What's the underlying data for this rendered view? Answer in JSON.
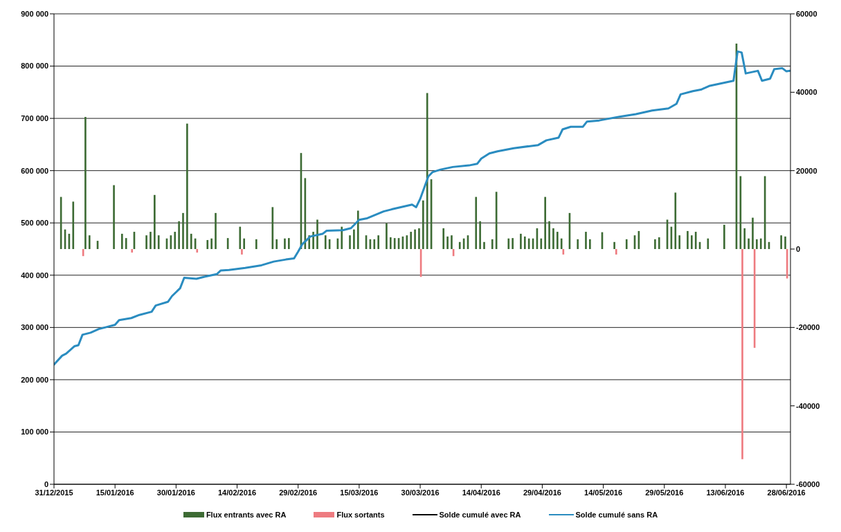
{
  "chart_data": {
    "type": "bar",
    "grid": "y",
    "legend": "bottom",
    "xlim": [
      "2015-12-31",
      "2016-06-29"
    ],
    "xticks": [
      {
        "value": "2015-12-31",
        "label": "31/12/2015"
      },
      {
        "value": "2016-01-15",
        "label": "15/01/2016"
      },
      {
        "value": "2016-01-30",
        "label": "30/01/2016"
      },
      {
        "value": "2016-02-14",
        "label": "14/02/2016"
      },
      {
        "value": "2016-02-29",
        "label": "29/02/2016"
      },
      {
        "value": "2016-03-15",
        "label": "15/03/2016"
      },
      {
        "value": "2016-03-30",
        "label": "30/03/2016"
      },
      {
        "value": "2016-04-14",
        "label": "14/04/2016"
      },
      {
        "value": "2016-04-29",
        "label": "29/04/2016"
      },
      {
        "value": "2016-05-14",
        "label": "14/05/2016"
      },
      {
        "value": "2016-05-29",
        "label": "29/05/2016"
      },
      {
        "value": "2016-06-13",
        "label": "13/06/2016"
      },
      {
        "value": "2016-06-28",
        "label": "28/06/2016"
      }
    ],
    "ylim": [
      0,
      900000
    ],
    "yticks": [
      0,
      {
        "value": 100000,
        "label": "100 000"
      },
      {
        "value": 200000,
        "label": "200 000"
      },
      {
        "value": 300000,
        "label": "300 000"
      },
      {
        "value": 400000,
        "label": "400 000"
      },
      {
        "value": 500000,
        "label": "500 000"
      },
      {
        "value": 600000,
        "label": "600 000"
      },
      {
        "value": 700000,
        "label": "700 000"
      },
      {
        "value": 800000,
        "label": "800 000"
      },
      {
        "value": 900000,
        "label": "900 000"
      }
    ],
    "y2lim": [
      -60000,
      60000
    ],
    "y2ticks": [
      -60000,
      -40000,
      -20000,
      0,
      20000,
      40000,
      60000
    ],
    "series": [
      {
        "name": "Flux entrants avec RA",
        "axis": "y2",
        "color": "#3d6b34",
        "x": [
          "2016-01-02",
          "2016-01-03",
          "2016-01-04",
          "2016-01-05",
          "2016-01-08",
          "2016-01-09",
          "2016-01-11",
          "2016-01-15",
          "2016-01-17",
          "2016-01-18",
          "2016-01-20",
          "2016-01-23",
          "2016-01-24",
          "2016-01-25",
          "2016-01-26",
          "2016-01-28",
          "2016-01-29",
          "2016-01-30",
          "2016-01-31",
          "2016-02-01",
          "2016-02-02",
          "2016-02-03",
          "2016-02-04",
          "2016-02-07",
          "2016-02-08",
          "2016-02-09",
          "2016-02-12",
          "2016-02-15",
          "2016-02-16",
          "2016-02-19",
          "2016-02-23",
          "2016-02-24",
          "2016-02-26",
          "2016-02-27",
          "2016-03-01",
          "2016-03-02",
          "2016-03-03",
          "2016-03-04",
          "2016-03-05",
          "2016-03-07",
          "2016-03-08",
          "2016-03-10",
          "2016-03-11",
          "2016-03-13",
          "2016-03-14",
          "2016-03-15",
          "2016-03-17",
          "2016-03-18",
          "2016-03-19",
          "2016-03-20",
          "2016-03-22",
          "2016-03-23",
          "2016-03-24",
          "2016-03-25",
          "2016-03-26",
          "2016-03-27",
          "2016-03-28",
          "2016-03-29",
          "2016-03-30",
          "2016-03-31",
          "2016-04-01",
          "2016-04-02",
          "2016-04-05",
          "2016-04-06",
          "2016-04-07",
          "2016-04-09",
          "2016-04-10",
          "2016-04-11",
          "2016-04-13",
          "2016-04-14",
          "2016-04-15",
          "2016-04-17",
          "2016-04-18",
          "2016-04-21",
          "2016-04-22",
          "2016-04-24",
          "2016-04-25",
          "2016-04-26",
          "2016-04-27",
          "2016-04-28",
          "2016-04-29",
          "2016-04-30",
          "2016-05-01",
          "2016-05-02",
          "2016-05-03",
          "2016-05-04",
          "2016-05-06",
          "2016-05-08",
          "2016-05-10",
          "2016-05-11",
          "2016-05-14",
          "2016-05-17",
          "2016-05-20",
          "2016-05-22",
          "2016-05-23",
          "2016-05-27",
          "2016-05-28",
          "2016-05-30",
          "2016-05-31",
          "2016-06-01",
          "2016-06-02",
          "2016-06-04",
          "2016-06-05",
          "2016-06-06",
          "2016-06-07",
          "2016-06-09",
          "2016-06-13",
          "2016-06-16",
          "2016-06-17",
          "2016-06-18",
          "2016-06-19",
          "2016-06-20",
          "2016-06-21",
          "2016-06-22",
          "2016-06-23",
          "2016-06-24",
          "2016-06-27",
          "2016-06-28"
        ],
        "values": [
          13300,
          5000,
          3900,
          12100,
          33700,
          3500,
          2100,
          16300,
          3900,
          2800,
          4400,
          3500,
          4400,
          13800,
          3500,
          2700,
          3500,
          4400,
          7100,
          9200,
          32000,
          3900,
          2700,
          2300,
          2700,
          9200,
          2800,
          5700,
          2700,
          2500,
          10700,
          2500,
          2700,
          2800,
          24500,
          18100,
          3500,
          4400,
          7500,
          3500,
          2500,
          2700,
          5700,
          3500,
          5000,
          9800,
          3500,
          2500,
          2500,
          3500,
          6600,
          3000,
          2800,
          2800,
          3200,
          3500,
          4400,
          5000,
          5300,
          12400,
          39800,
          17800,
          5300,
          3200,
          3500,
          1800,
          2700,
          3500,
          13300,
          7100,
          1800,
          2500,
          14600,
          2700,
          2800,
          3900,
          3200,
          2700,
          2700,
          5300,
          2700,
          13300,
          7100,
          5300,
          4400,
          2700,
          9200,
          2500,
          4400,
          2500,
          4300,
          1800,
          2500,
          3500,
          4600,
          2500,
          3000,
          7500,
          5700,
          14400,
          3500,
          4600,
          3500,
          4400,
          1800,
          2700,
          6200,
          52400,
          18600,
          5300,
          2700,
          8000,
          2500,
          2700,
          18600,
          1800,
          3500,
          3200
        ]
      },
      {
        "name": "Flux sortants",
        "axis": "y2",
        "color": "#ee7b80",
        "x": [
          "2016-01-07",
          "2016-01-19",
          "2016-02-04",
          "2016-02-15",
          "2016-03-30",
          "2016-04-07",
          "2016-05-04",
          "2016-05-17",
          "2016-06-17",
          "2016-06-20",
          "2016-06-28"
        ],
        "values": [
          -1800,
          -900,
          -900,
          -1400,
          -7100,
          -1800,
          -1400,
          -1400,
          -53600,
          -25200,
          -7500
        ]
      },
      {
        "name": "Solde cumulé avec RA",
        "type": "line",
        "axis": "y",
        "color": "#000000"
      },
      {
        "name": "Solde cumulé sans RA",
        "type": "line",
        "axis": "y",
        "color": "#2a8cc0",
        "x": [
          "2015-12-31",
          "2016-01-02",
          "2016-01-03",
          "2016-01-05",
          "2016-01-06",
          "2016-01-07",
          "2016-01-09",
          "2016-01-11",
          "2016-01-13",
          "2016-01-15",
          "2016-01-16",
          "2016-01-19",
          "2016-01-21",
          "2016-01-24",
          "2016-01-25",
          "2016-01-28",
          "2016-01-29",
          "2016-01-31",
          "2016-02-01",
          "2016-02-04",
          "2016-02-06",
          "2016-02-09",
          "2016-02-10",
          "2016-02-12",
          "2016-02-16",
          "2016-02-20",
          "2016-02-23",
          "2016-02-26",
          "2016-02-28",
          "2016-02-29",
          "2016-03-01",
          "2016-03-03",
          "2016-03-06",
          "2016-03-07",
          "2016-03-11",
          "2016-03-13",
          "2016-03-15",
          "2016-03-17",
          "2016-03-21",
          "2016-03-23",
          "2016-03-28",
          "2016-03-29",
          "2016-03-30",
          "2016-04-01",
          "2016-04-02",
          "2016-04-04",
          "2016-04-07",
          "2016-04-11",
          "2016-04-13",
          "2016-04-14",
          "2016-04-16",
          "2016-04-18",
          "2016-04-22",
          "2016-04-28",
          "2016-04-30",
          "2016-05-03",
          "2016-05-04",
          "2016-05-06",
          "2016-05-09",
          "2016-05-10",
          "2016-05-13",
          "2016-05-15",
          "2016-05-18",
          "2016-05-22",
          "2016-05-26",
          "2016-05-30",
          "2016-06-01",
          "2016-06-02",
          "2016-06-05",
          "2016-06-07",
          "2016-06-09",
          "2016-06-12",
          "2016-06-15",
          "2016-06-16",
          "2016-06-17",
          "2016-06-18",
          "2016-06-21",
          "2016-06-22",
          "2016-06-24",
          "2016-06-25",
          "2016-06-27",
          "2016-06-28",
          "2016-06-29"
        ],
        "values": [
          229000,
          246000,
          250000,
          264000,
          266000,
          286000,
          290000,
          297000,
          301000,
          305000,
          314000,
          318000,
          324000,
          330000,
          342000,
          349000,
          360000,
          375000,
          395000,
          393000,
          397000,
          402000,
          409000,
          410000,
          414000,
          419000,
          426000,
          430000,
          432000,
          445000,
          459000,
          474000,
          479000,
          485000,
          486000,
          490000,
          506000,
          509000,
          522000,
          526000,
          535000,
          530000,
          546000,
          589000,
          597000,
          602000,
          607000,
          610000,
          613000,
          623000,
          633000,
          637000,
          643000,
          649000,
          658000,
          663000,
          679000,
          684000,
          684000,
          694000,
          696000,
          699000,
          703000,
          708000,
          715000,
          719000,
          728000,
          746000,
          752000,
          755000,
          762000,
          767000,
          772000,
          828000,
          826000,
          786000,
          791000,
          772000,
          776000,
          794000,
          796000,
          790000,
          791000
        ]
      }
    ]
  }
}
